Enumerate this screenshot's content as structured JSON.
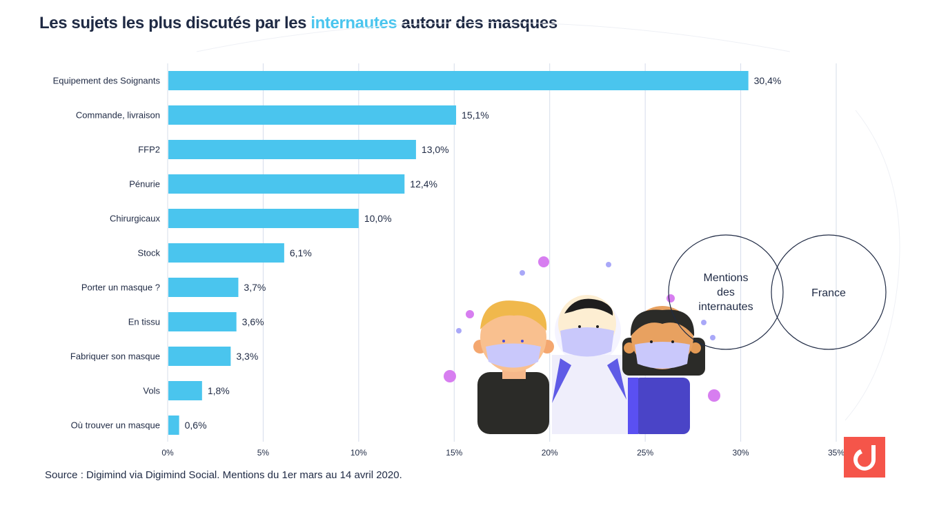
{
  "header": {
    "title_before": "Les sujets les plus discutés par les ",
    "title_highlight": "internautes",
    "title_after": " autour des  masques"
  },
  "colors": {
    "bar": "#4ac5ee",
    "highlight": "#4ac5ee",
    "text": "#1f2a44",
    "grid": "#d5dcea",
    "logo_bg": "#f5554a"
  },
  "chart_data": {
    "type": "bar",
    "orientation": "horizontal",
    "title": "Les sujets les plus discutés par les internautes autour des  masques",
    "xlabel": "",
    "ylabel": "",
    "xlim": [
      0,
      35
    ],
    "grid": true,
    "categories": [
      "Equipement des Soignants",
      "Commande, livraison",
      "FFP2",
      "Pénurie",
      "Chirurgicaux",
      "Stock",
      "Porter un masque ?",
      "En tissu",
      "Fabriquer son masque",
      "Vols",
      "Où trouver un masque"
    ],
    "values": [
      30.4,
      15.1,
      13.0,
      12.4,
      10.0,
      6.1,
      3.7,
      3.6,
      3.3,
      1.8,
      0.6
    ],
    "value_labels": [
      "30,4%",
      "15,1%",
      "13,0%",
      "12,4%",
      "10,0%",
      "6,1%",
      "3,7%",
      "3,6%",
      "3,3%",
      "1,8%",
      "0,6%"
    ],
    "x_ticks": [
      0,
      5,
      10,
      15,
      20,
      25,
      30,
      35
    ],
    "x_tick_labels": [
      "0%",
      "5%",
      "10%",
      "15%",
      "20%",
      "25%",
      "30%",
      "35%"
    ]
  },
  "venn": {
    "left_lines": [
      "Mentions",
      "des",
      "internautes"
    ],
    "right_label": "France"
  },
  "source": "Source : Digimind via Digimind Social. Mentions du 1er mars au 14 avril 2020.",
  "logo": {
    "name": "digimind-logo"
  }
}
